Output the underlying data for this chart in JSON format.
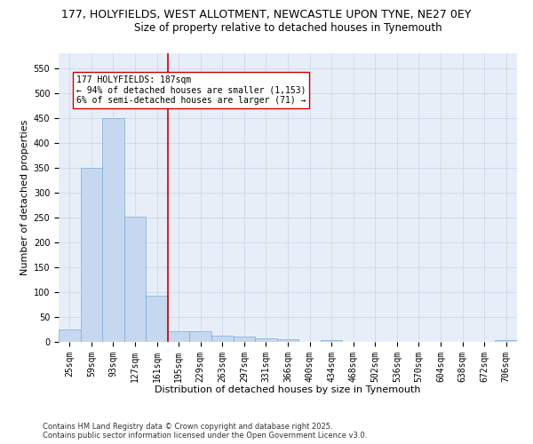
{
  "title_line1": "177, HOLYFIELDS, WEST ALLOTMENT, NEWCASTLE UPON TYNE, NE27 0EY",
  "title_line2": "Size of property relative to detached houses in Tynemouth",
  "xlabel": "Distribution of detached houses by size in Tynemouth",
  "ylabel": "Number of detached properties",
  "categories": [
    "25sqm",
    "59sqm",
    "93sqm",
    "127sqm",
    "161sqm",
    "195sqm",
    "229sqm",
    "263sqm",
    "297sqm",
    "331sqm",
    "366sqm",
    "400sqm",
    "434sqm",
    "468sqm",
    "502sqm",
    "536sqm",
    "570sqm",
    "604sqm",
    "638sqm",
    "672sqm",
    "706sqm"
  ],
  "values": [
    25,
    350,
    450,
    252,
    93,
    22,
    21,
    13,
    10,
    7,
    5,
    0,
    4,
    0,
    0,
    0,
    0,
    0,
    0,
    0,
    4
  ],
  "bar_color": "#c5d8f0",
  "bar_edge_color": "#7aadd4",
  "vline_color": "#cc0000",
  "vline_x_index": 4.5,
  "annotation_text": "177 HOLYFIELDS: 187sqm\n← 94% of detached houses are smaller (1,153)\n6% of semi-detached houses are larger (71) →",
  "annotation_box_color": "#ffffff",
  "annotation_box_edge": "#cc0000",
  "ylim": [
    0,
    580
  ],
  "yticks": [
    0,
    50,
    100,
    150,
    200,
    250,
    300,
    350,
    400,
    450,
    500,
    550
  ],
  "grid_color": "#c8d4e8",
  "background_color": "#e8eef8",
  "footer_text": "Contains HM Land Registry data © Crown copyright and database right 2025.\nContains public sector information licensed under the Open Government Licence v3.0.",
  "title_fontsize": 9,
  "subtitle_fontsize": 8.5,
  "axis_label_fontsize": 8,
  "tick_fontsize": 7,
  "annotation_fontsize": 7,
  "footer_fontsize": 6
}
